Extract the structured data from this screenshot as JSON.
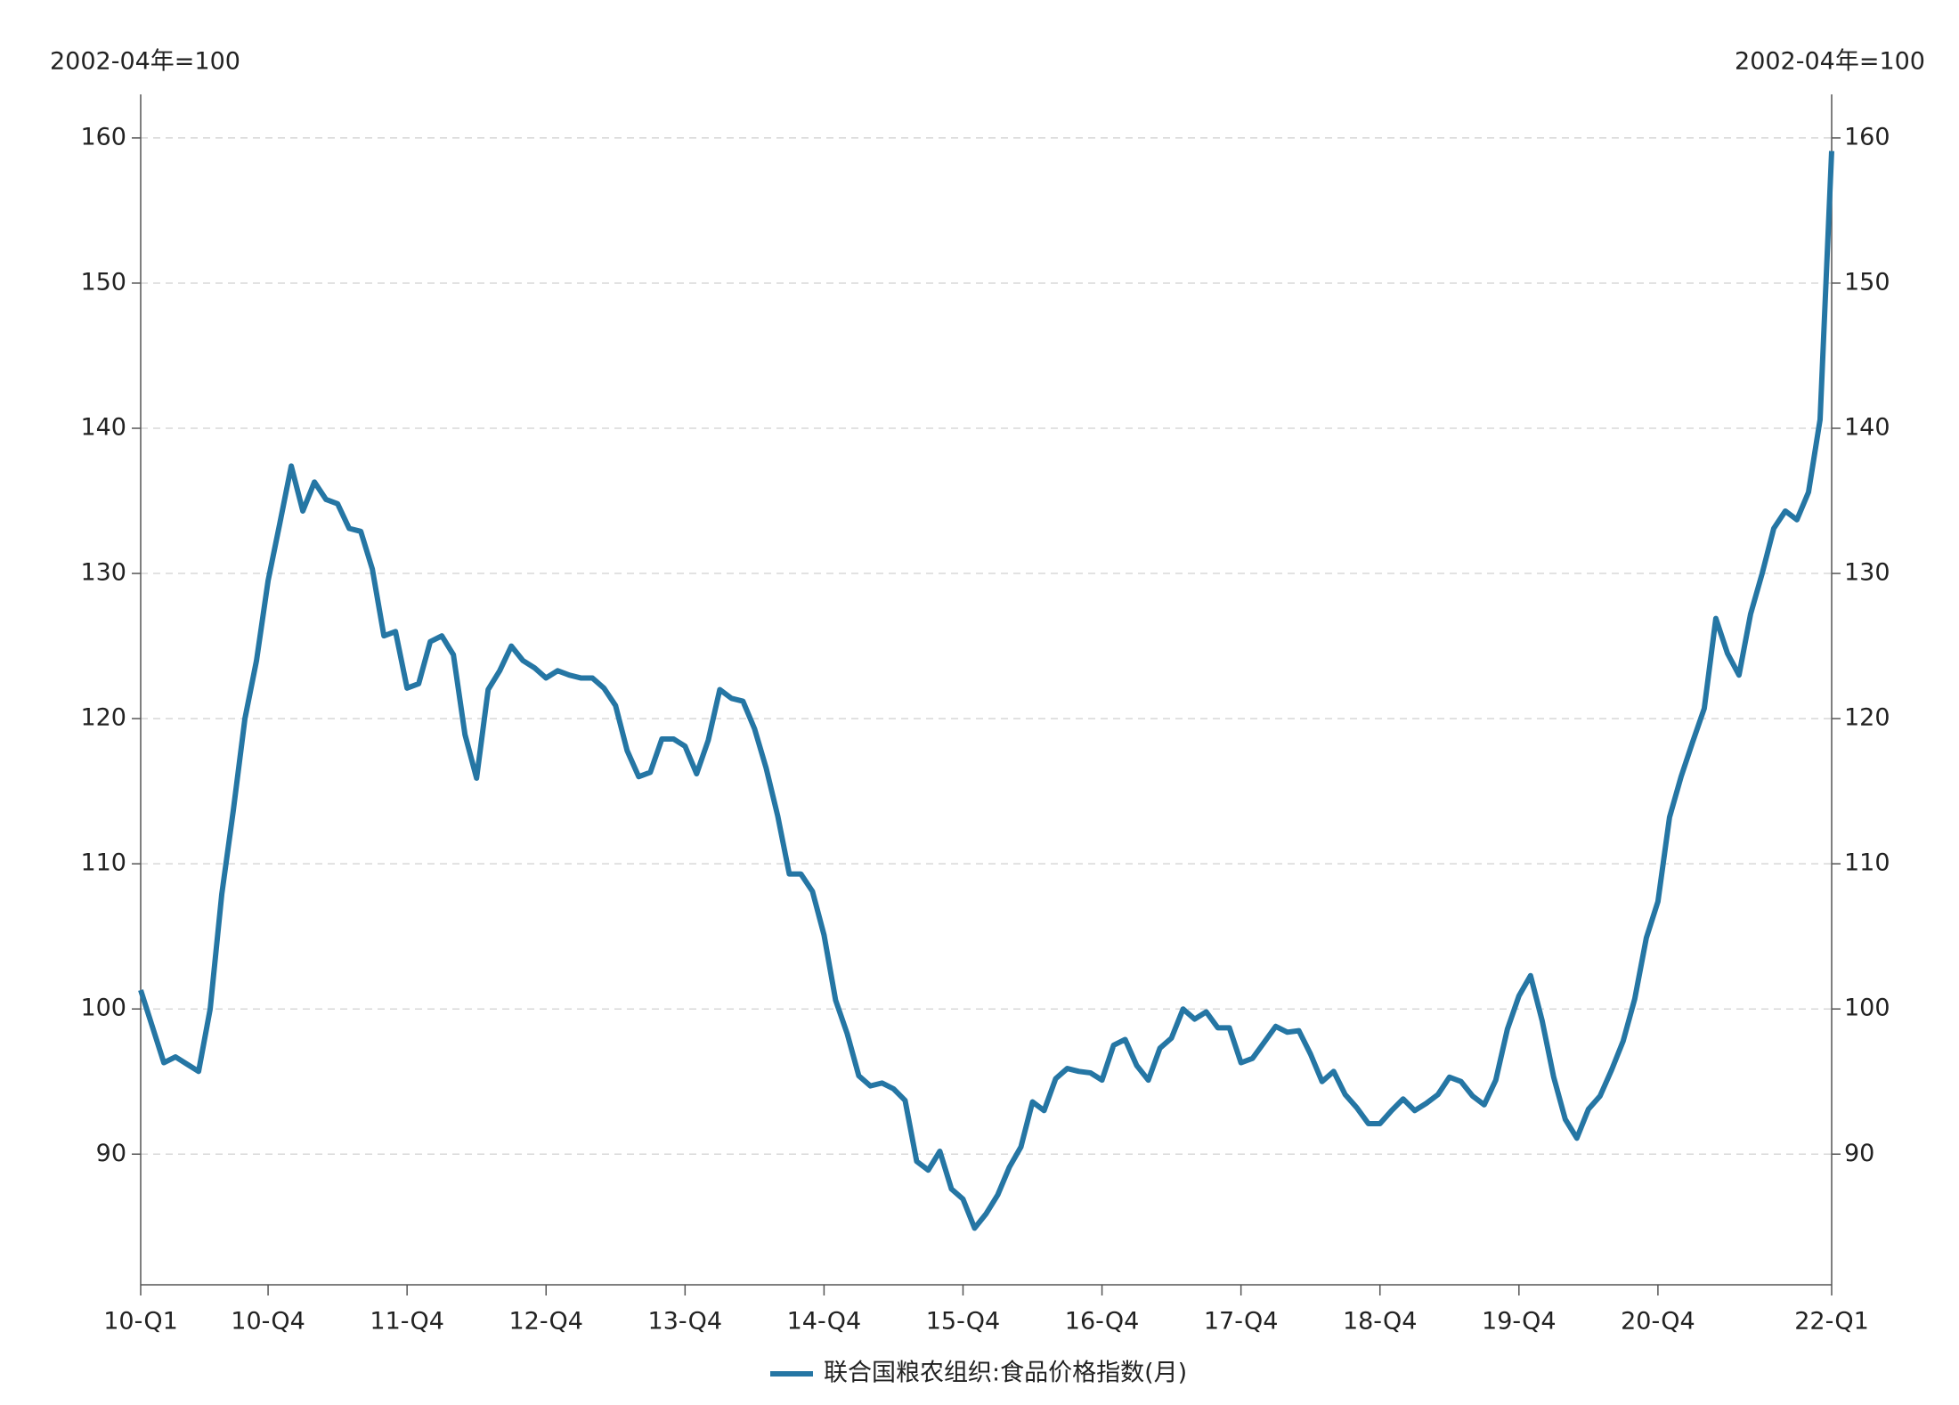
{
  "chart_data": {
    "type": "line",
    "ylabel": "2002-04年=100",
    "y2label": "2002-04年=100",
    "categories": [
      "10-Q1",
      null,
      null,
      null,
      null,
      null,
      null,
      null,
      null,
      null,
      null,
      "10-Q4",
      null,
      null,
      null,
      null,
      null,
      null,
      null,
      null,
      null,
      null,
      null,
      "11-Q4",
      null,
      null,
      null,
      null,
      null,
      null,
      null,
      null,
      null,
      null,
      null,
      "12-Q4",
      null,
      null,
      null,
      null,
      null,
      null,
      null,
      null,
      null,
      null,
      null,
      "13-Q4",
      null,
      null,
      null,
      null,
      null,
      null,
      null,
      null,
      null,
      null,
      null,
      "14-Q4",
      null,
      null,
      null,
      null,
      null,
      null,
      null,
      null,
      null,
      null,
      null,
      "15-Q4",
      null,
      null,
      null,
      null,
      null,
      null,
      null,
      null,
      null,
      null,
      null,
      "16-Q4",
      null,
      null,
      null,
      null,
      null,
      null,
      null,
      null,
      null,
      null,
      null,
      "17-Q4",
      null,
      null,
      null,
      null,
      null,
      null,
      null,
      null,
      null,
      null,
      null,
      "18-Q4",
      null,
      null,
      null,
      null,
      null,
      null,
      null,
      null,
      null,
      null,
      null,
      "19-Q4",
      null,
      null,
      null,
      null,
      null,
      null,
      null,
      null,
      null,
      null,
      null,
      "20-Q4",
      null,
      null,
      null,
      null,
      null,
      null,
      null,
      null,
      null,
      null,
      null,
      null,
      null,
      null,
      "22-Q1"
    ],
    "series": [
      {
        "name": "联合国粮农组织:食品价格指数(月)",
        "color": "#2576a4",
        "values": [
          101.3,
          98.8,
          96.3,
          96.7,
          96.2,
          95.7,
          100.0,
          107.9,
          113.7,
          120.0,
          124.0,
          129.5,
          133.4,
          137.4,
          134.3,
          136.3,
          135.1,
          134.8,
          133.1,
          132.9,
          130.3,
          125.7,
          126.0,
          122.1,
          122.4,
          125.3,
          125.7,
          124.4,
          118.9,
          115.9,
          122.0,
          123.3,
          125.0,
          124.0,
          123.5,
          122.8,
          123.3,
          123.0,
          122.8,
          122.8,
          122.1,
          120.9,
          117.8,
          116.0,
          116.3,
          118.6,
          118.6,
          118.1,
          116.2,
          118.5,
          122.0,
          121.4,
          121.2,
          119.3,
          116.6,
          113.3,
          109.3,
          109.3,
          108.1,
          105.1,
          100.6,
          98.3,
          95.4,
          94.7,
          94.9,
          94.5,
          93.7,
          89.5,
          88.9,
          90.2,
          87.6,
          86.9,
          84.9,
          85.9,
          87.2,
          89.1,
          90.5,
          93.6,
          93.0,
          95.2,
          95.9,
          95.7,
          95.6,
          95.1,
          97.5,
          97.9,
          96.1,
          95.1,
          97.3,
          98.0,
          100.0,
          99.3,
          99.8,
          98.7,
          98.7,
          96.3,
          96.6,
          97.7,
          98.8,
          98.4,
          98.5,
          96.9,
          95.0,
          95.7,
          94.1,
          93.2,
          92.1,
          92.1,
          93.0,
          93.8,
          93.0,
          93.5,
          94.1,
          95.3,
          95.0,
          94.0,
          93.4,
          95.1,
          98.6,
          100.9,
          102.3,
          99.2,
          95.3,
          92.4,
          91.1,
          93.1,
          94.0,
          95.8,
          97.8,
          100.7,
          104.9,
          107.4,
          113.2,
          116.0,
          118.4,
          120.7,
          126.9,
          124.5,
          123.0,
          127.2,
          130.0,
          133.1,
          134.3,
          133.7,
          135.6,
          140.6,
          159.1
        ]
      }
    ],
    "ylim": [
      81,
      163
    ],
    "yticks": [
      90,
      100,
      110,
      120,
      130,
      140,
      150,
      160
    ],
    "y2lim": [
      81,
      163
    ],
    "y2ticks": [
      90,
      100,
      110,
      120,
      130,
      140,
      150,
      160
    ],
    "grid": true,
    "legend": "bottom"
  }
}
